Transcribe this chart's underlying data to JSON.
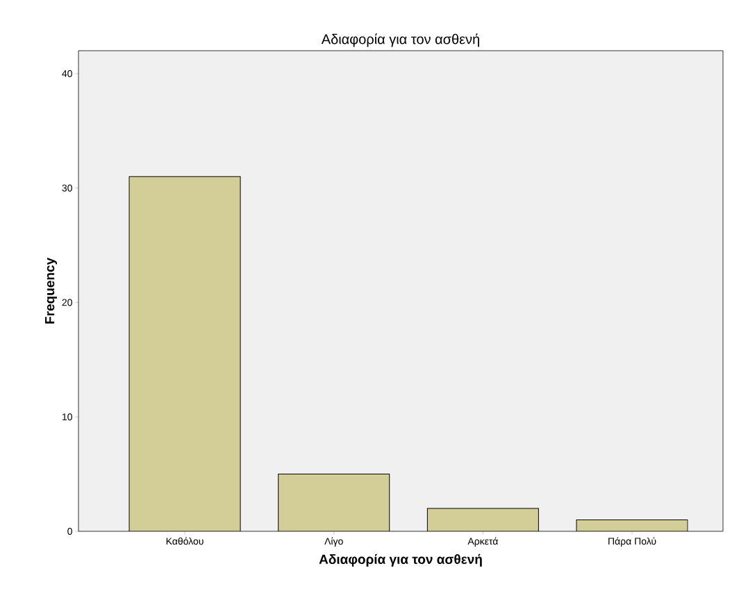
{
  "chart_data": {
    "type": "bar",
    "title": "Αδιαφορία για τον ασθενή",
    "xlabel": "Αδιαφορία για τον ασθενή",
    "ylabel": "Frequency",
    "categories": [
      "Καθόλου",
      "Λίγο",
      "Αρκετά",
      "Πάρα Πολύ"
    ],
    "values": [
      31,
      5,
      2,
      1
    ],
    "color": "#d3ce97",
    "ylim": [
      0,
      42
    ],
    "yticks": [
      0,
      10,
      20,
      30,
      40
    ],
    "grid": false
  }
}
